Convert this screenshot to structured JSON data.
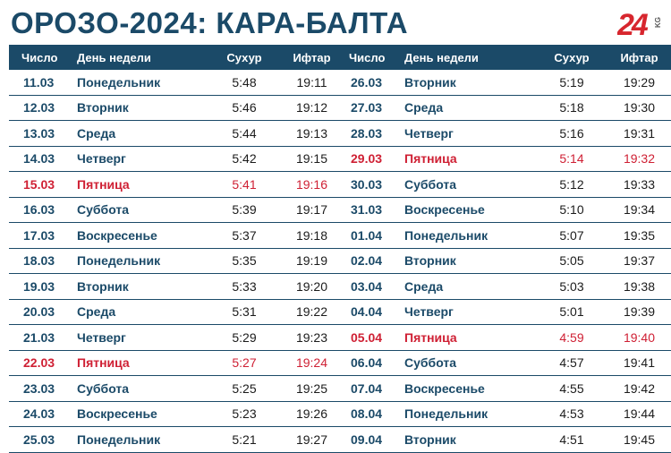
{
  "title": "ОРОЗО-2024: КАРА-БАЛТА",
  "logo": {
    "number": "24",
    "suffix": "KG"
  },
  "headers": {
    "date": "Число",
    "day": "День недели",
    "suhur": "Сухур",
    "iftar": "Ифтар"
  },
  "colors": {
    "header_bg": "#1b4a68",
    "text_blue": "#1b4a68",
    "friday_red": "#cf2034",
    "logo_red": "#d7262e"
  },
  "left_rows": [
    {
      "date": "11.03",
      "day": "Понедельник",
      "suhur": "5:48",
      "iftar": "19:11",
      "friday": false
    },
    {
      "date": "12.03",
      "day": "Вторник",
      "suhur": "5:46",
      "iftar": "19:12",
      "friday": false
    },
    {
      "date": "13.03",
      "day": "Среда",
      "suhur": "5:44",
      "iftar": "19:13",
      "friday": false
    },
    {
      "date": "14.03",
      "day": "Четверг",
      "suhur": "5:42",
      "iftar": "19:15",
      "friday": false
    },
    {
      "date": "15.03",
      "day": "Пятница",
      "suhur": "5:41",
      "iftar": "19:16",
      "friday": true
    },
    {
      "date": "16.03",
      "day": "Суббота",
      "suhur": "5:39",
      "iftar": "19:17",
      "friday": false
    },
    {
      "date": "17.03",
      "day": "Воскресенье",
      "suhur": "5:37",
      "iftar": "19:18",
      "friday": false
    },
    {
      "date": "18.03",
      "day": "Понедельник",
      "suhur": "5:35",
      "iftar": "19:19",
      "friday": false
    },
    {
      "date": "19.03",
      "day": "Вторник",
      "suhur": "5:33",
      "iftar": "19:20",
      "friday": false
    },
    {
      "date": "20.03",
      "day": "Среда",
      "suhur": "5:31",
      "iftar": "19:22",
      "friday": false
    },
    {
      "date": "21.03",
      "day": "Четверг",
      "suhur": "5:29",
      "iftar": "19:23",
      "friday": false
    },
    {
      "date": "22.03",
      "day": "Пятница",
      "suhur": "5:27",
      "iftar": "19:24",
      "friday": true
    },
    {
      "date": "23.03",
      "day": "Суббота",
      "suhur": "5:25",
      "iftar": "19:25",
      "friday": false
    },
    {
      "date": "24.03",
      "day": "Воскресенье",
      "suhur": "5:23",
      "iftar": "19:26",
      "friday": false
    },
    {
      "date": "25.03",
      "day": "Понедельник",
      "suhur": "5:21",
      "iftar": "19:27",
      "friday": false
    }
  ],
  "right_rows": [
    {
      "date": "26.03",
      "day": "Вторник",
      "suhur": "5:19",
      "iftar": "19:29",
      "friday": false
    },
    {
      "date": "27.03",
      "day": "Среда",
      "suhur": "5:18",
      "iftar": "19:30",
      "friday": false
    },
    {
      "date": "28.03",
      "day": "Четверг",
      "suhur": "5:16",
      "iftar": "19:31",
      "friday": false
    },
    {
      "date": "29.03",
      "day": "Пятница",
      "suhur": "5:14",
      "iftar": "19:32",
      "friday": true
    },
    {
      "date": "30.03",
      "day": "Суббота",
      "suhur": "5:12",
      "iftar": "19:33",
      "friday": false
    },
    {
      "date": "31.03",
      "day": "Воскресенье",
      "suhur": "5:10",
      "iftar": "19:34",
      "friday": false
    },
    {
      "date": "01.04",
      "day": "Понедельник",
      "suhur": "5:07",
      "iftar": "19:35",
      "friday": false
    },
    {
      "date": "02.04",
      "day": "Вторник",
      "suhur": "5:05",
      "iftar": "19:37",
      "friday": false
    },
    {
      "date": "03.04",
      "day": "Среда",
      "suhur": "5:03",
      "iftar": "19:38",
      "friday": false
    },
    {
      "date": "04.04",
      "day": "Четверг",
      "suhur": "5:01",
      "iftar": "19:39",
      "friday": false
    },
    {
      "date": "05.04",
      "day": "Пятница",
      "suhur": "4:59",
      "iftar": "19:40",
      "friday": true
    },
    {
      "date": "06.04",
      "day": "Суббота",
      "suhur": "4:57",
      "iftar": "19:41",
      "friday": false
    },
    {
      "date": "07.04",
      "day": "Воскресенье",
      "suhur": "4:55",
      "iftar": "19:42",
      "friday": false
    },
    {
      "date": "08.04",
      "day": "Понедельник",
      "suhur": "4:53",
      "iftar": "19:44",
      "friday": false
    },
    {
      "date": "09.04",
      "day": "Вторник",
      "suhur": "4:51",
      "iftar": "19:45",
      "friday": false
    }
  ]
}
